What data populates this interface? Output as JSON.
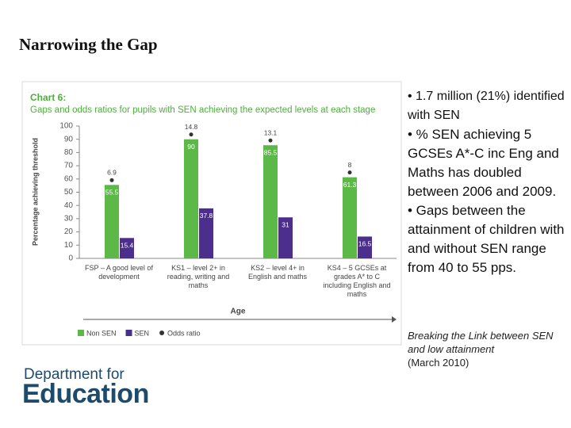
{
  "slide": {
    "title": "Narrowing the Gap"
  },
  "chart_data": {
    "type": "bar",
    "title": "Chart 6:",
    "subtitle": "Gaps and odds ratios for pupils with SEN achieving the expected levels at each stage",
    "x_label": "Age",
    "y_label": "Percentage achieving threshold",
    "categories": [
      "FSP – A good level of development",
      "KS1 – level 2+ in reading, writing and maths",
      "KS2 – level 4+ in English and maths",
      "KS4 – 5 GCSEs at grades A* to C including English and maths"
    ],
    "series": [
      {
        "name": "Non SEN",
        "color": "#5cb947",
        "values": [
          55.5,
          90,
          85.5,
          61.3
        ]
      },
      {
        "name": "SEN",
        "color": "#4b2e8d",
        "values": [
          15.4,
          37.8,
          31,
          16.5
        ]
      },
      {
        "name": "Odds ratio",
        "color": "#333333",
        "marker": "dot",
        "values": [
          6.9,
          14.8,
          13.1,
          8
        ]
      }
    ],
    "ylim": [
      0,
      100
    ],
    "yticks": [
      0,
      10,
      20,
      30,
      40,
      50,
      60,
      70,
      80,
      90,
      100
    ],
    "grid": false
  },
  "bullets": [
    "• 1.7 million (21%) identified with SEN",
    "• % SEN achieving 5 GCSEs A*-C inc Eng and Maths has doubled between 2006 and 2009.",
    "• Gaps between the attainment of children with and without SEN range from 40 to 55 pps."
  ],
  "source": {
    "title": "Breaking the Link between SEN and low attainment",
    "date": "(March 2010)"
  },
  "logo": {
    "line1": "Department for",
    "line2": "Education"
  }
}
